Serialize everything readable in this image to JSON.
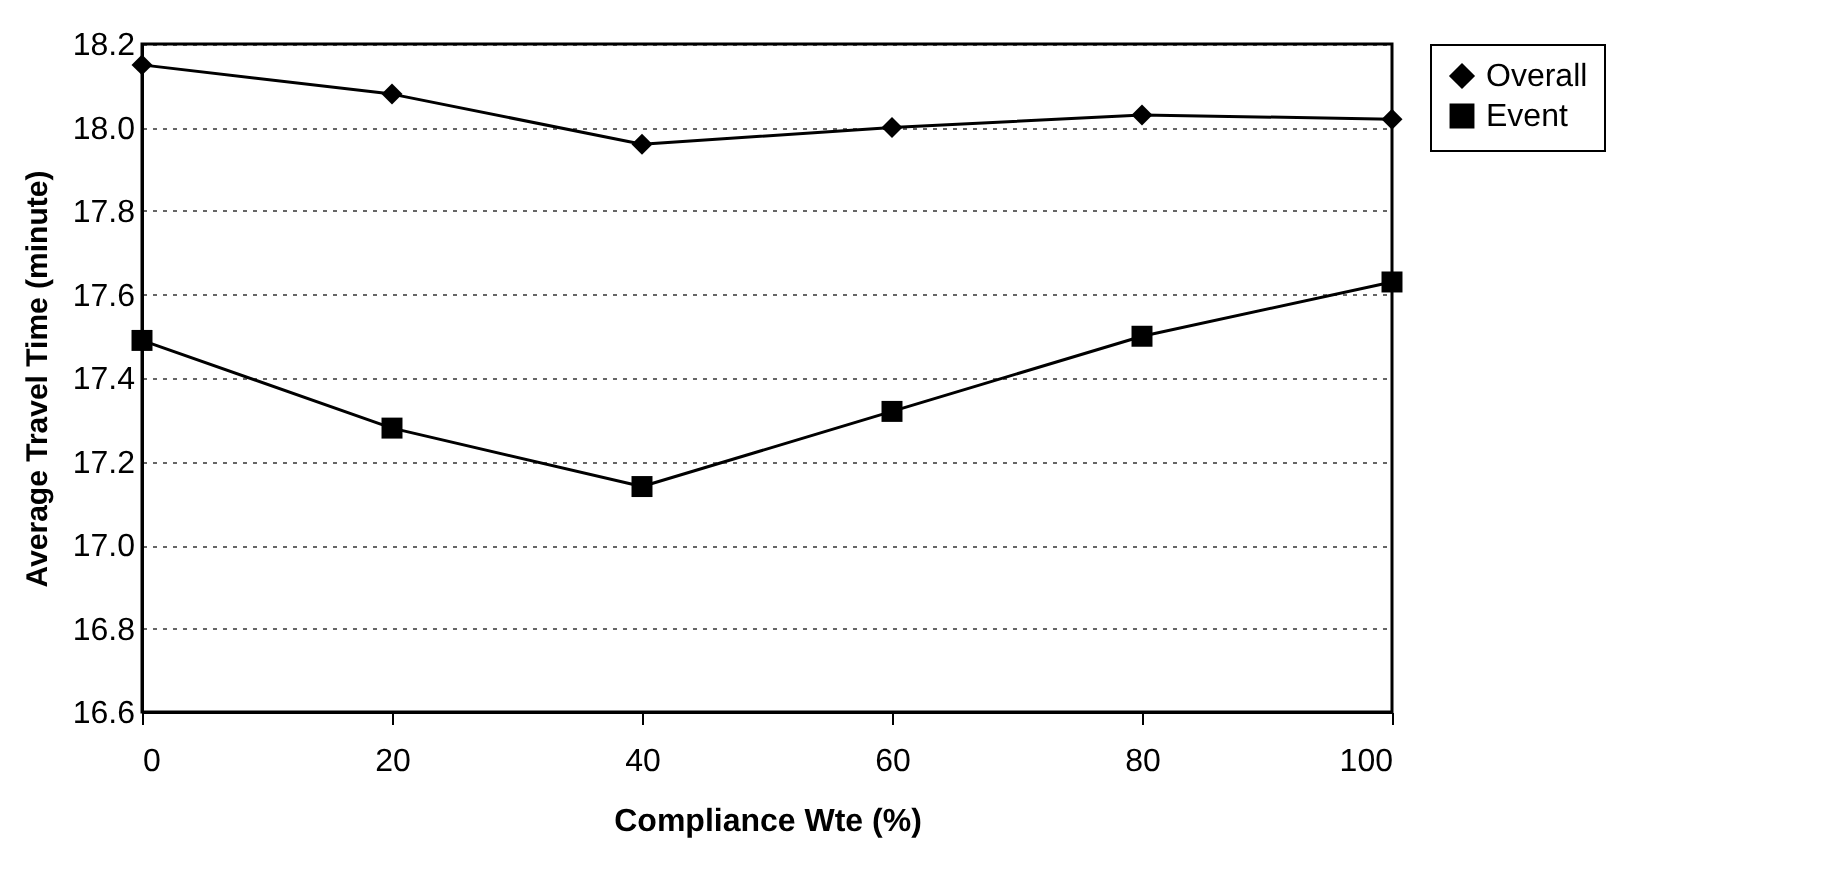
{
  "chart_data": {
    "type": "line",
    "xlabel": "Compliance Wte (%)",
    "ylabel": "Average Travel Time (minute)",
    "x": [
      0,
      20,
      40,
      60,
      80,
      100
    ],
    "series": [
      {
        "name": "Overall",
        "color": "#000000",
        "marker": "diamond",
        "values": [
          18.15,
          18.08,
          17.96,
          18.0,
          18.03,
          18.02
        ]
      },
      {
        "name": "Event",
        "color": "#000000",
        "marker": "square",
        "values": [
          17.49,
          17.28,
          17.14,
          17.32,
          17.5,
          17.63
        ]
      }
    ],
    "xlim": [
      0,
      100
    ],
    "xticks": [
      0,
      20,
      40,
      60,
      80,
      100
    ],
    "ylim": [
      16.6,
      18.2
    ],
    "yticks": [
      16.6,
      16.8,
      {
        "value": 17,
        "label": "17.0"
      },
      17.2,
      17.4,
      17.6,
      17.8,
      {
        "value": 18,
        "label": "18.0"
      },
      18.2
    ],
    "grid": "y",
    "legend": "right",
    "line_style": "solid"
  }
}
